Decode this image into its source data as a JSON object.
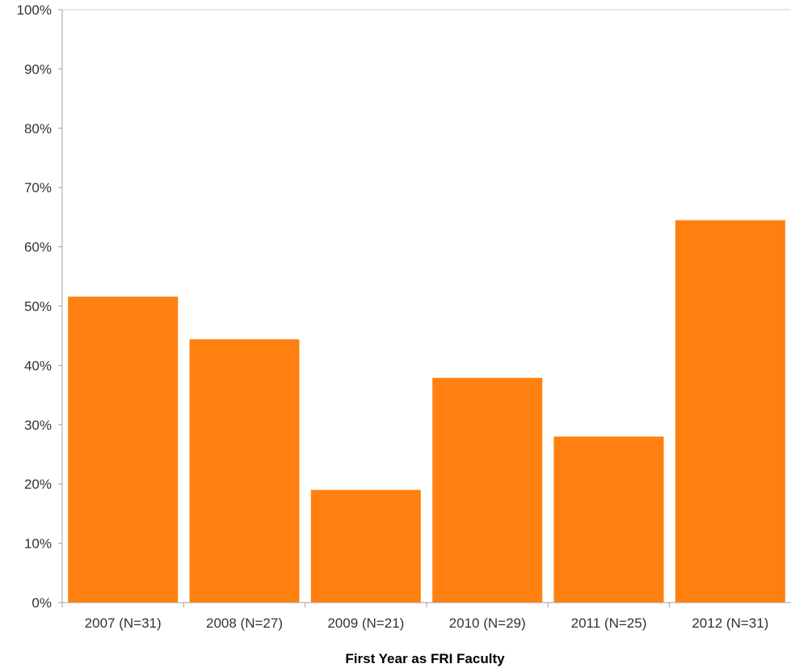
{
  "chart_data": {
    "type": "bar",
    "title": "",
    "xlabel": "First Year as FRI Faculty",
    "ylabel": "",
    "categories": [
      "2007 (N=31)",
      "2008 (N=27)",
      "2009 (N=21)",
      "2010 (N=29)",
      "2011 (N=25)",
      "2012 (N=31)"
    ],
    "values": [
      51.6,
      44.4,
      19.0,
      37.9,
      28.0,
      64.5
    ],
    "ylim": [
      0,
      100
    ],
    "yticks": [
      "0%",
      "10%",
      "20%",
      "30%",
      "40%",
      "50%",
      "60%",
      "70%",
      "80%",
      "90%",
      "100%"
    ],
    "grid": false,
    "legend": "none",
    "bar_color": "#ff8010",
    "axis_color": "#a0a0a0"
  }
}
